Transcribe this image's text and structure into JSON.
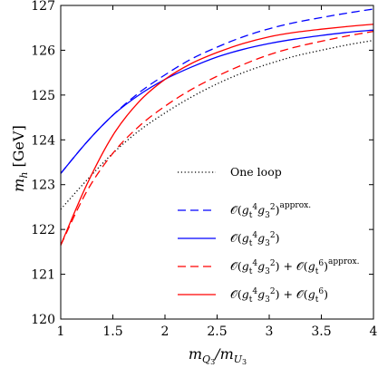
{
  "chart_data": {
    "type": "line",
    "title": "",
    "xlabel": "m_{Q3}/m_{U3}",
    "ylabel": "m_h [GeV]",
    "xlim": [
      1,
      4
    ],
    "ylim": [
      120,
      127
    ],
    "xticks": [
      "1",
      "1.5",
      "2",
      "2.5",
      "3",
      "3.5",
      "4"
    ],
    "yticks": [
      "120",
      "121",
      "122",
      "123",
      "124",
      "125",
      "126",
      "127"
    ],
    "grid": false,
    "legend_position": "bottom-right",
    "x": [
      1.0,
      1.25,
      1.5,
      1.75,
      2.0,
      2.25,
      2.5,
      2.75,
      3.0,
      3.25,
      3.5,
      3.75,
      4.0
    ],
    "series": [
      {
        "name": "One loop",
        "style": "dotted",
        "color": "#000000",
        "values": [
          122.45,
          123.1,
          123.7,
          124.2,
          124.6,
          124.95,
          125.25,
          125.5,
          125.7,
          125.87,
          126.0,
          126.12,
          126.22
        ]
      },
      {
        "name": "O(g_t^4 g_3^2)^approx.",
        "style": "dashed",
        "color": "#0000ff",
        "values": [
          123.25,
          123.95,
          124.55,
          125.05,
          125.45,
          125.8,
          126.07,
          126.3,
          126.48,
          126.62,
          126.73,
          126.83,
          126.92
        ]
      },
      {
        "name": "O(g_t^4 g_3^2)",
        "style": "solid",
        "color": "#0000ff",
        "values": [
          123.25,
          123.95,
          124.55,
          125.0,
          125.35,
          125.62,
          125.85,
          126.02,
          126.15,
          126.25,
          126.33,
          126.4,
          126.45
        ]
      },
      {
        "name": "O(g_t^4 g_3^2) + O(g_t^6)^approx.",
        "style": "dashed",
        "color": "#ff0000",
        "values": [
          121.65,
          122.85,
          123.7,
          124.3,
          124.75,
          125.12,
          125.42,
          125.68,
          125.9,
          126.07,
          126.2,
          126.32,
          126.42
        ]
      },
      {
        "name": "O(g_t^4 g_3^2) + O(g_t^6)",
        "style": "solid",
        "color": "#ff0000",
        "values": [
          121.65,
          123.0,
          124.1,
          124.85,
          125.35,
          125.7,
          125.95,
          126.15,
          126.3,
          126.4,
          126.47,
          126.53,
          126.58
        ]
      }
    ]
  }
}
